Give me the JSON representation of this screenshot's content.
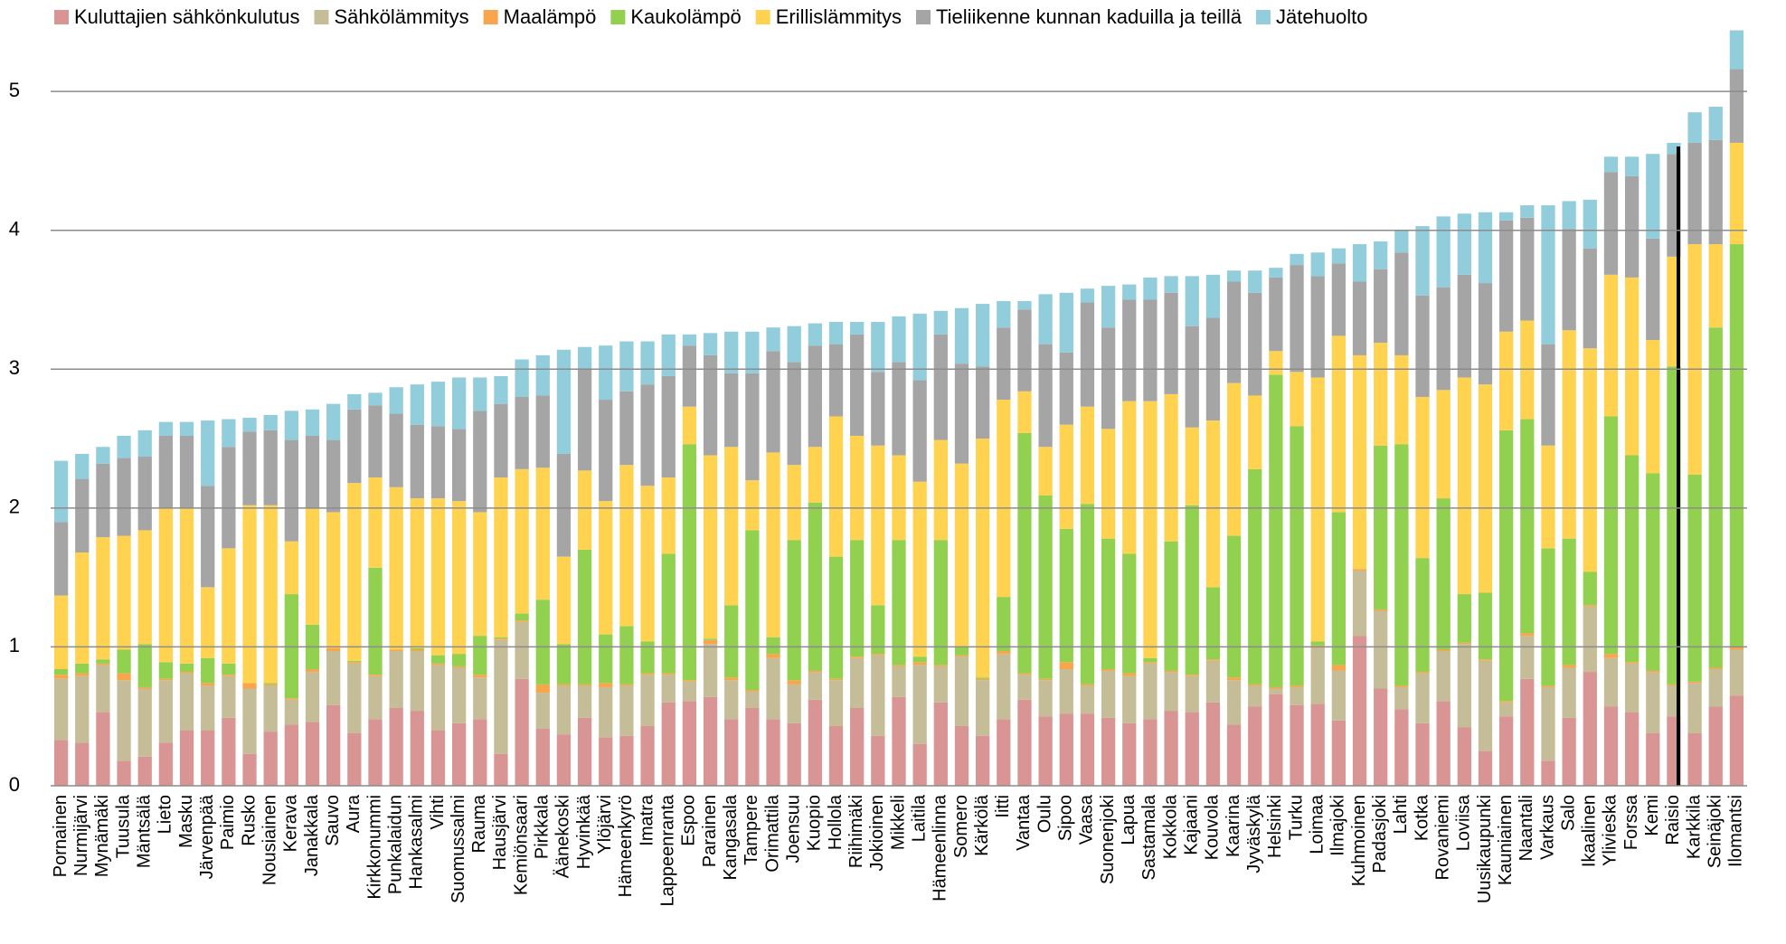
{
  "chart_data": {
    "type": "stacked_bar",
    "categories": [
      "Pornainen",
      "Nurmijärvi",
      "Mynämäki",
      "Tuusula",
      "Mäntsälä",
      "Lieto",
      "Masku",
      "Järvenpää",
      "Paimio",
      "Rusko",
      "Nousiainen",
      "Kerava",
      "Janakkala",
      "Sauvo",
      "Aura",
      "Kirkkonummi",
      "Punkalaidun",
      "Hankasalmi",
      "Vihti",
      "Suomussalmi",
      "Rauma",
      "Hausjärvi",
      "Kemiönsaari",
      "Pirkkala",
      "Äänekoski",
      "Hyvinkää",
      "Ylöjärvi",
      "Hämeenkyrö",
      "Imatra",
      "Lappeenranta",
      "Espoo",
      "Parainen",
      "Kangasala",
      "Tampere",
      "Orimattila",
      "Joensuu",
      "Kuopio",
      "Hollola",
      "Riihimäki",
      "Jokioinen",
      "Mikkeli",
      "Laitila",
      "Hämeenlinna",
      "Somero",
      "Kärkölä",
      "Iitti",
      "Vantaa",
      "Oulu",
      "Sipoo",
      "Vaasa",
      "Suonenjoki",
      "Lapua",
      "Sastamala",
      "Kokkola",
      "Kajaani",
      "Kouvola",
      "Kaarina",
      "Jyväskylä",
      "Helsinki",
      "Turku",
      "Loimaa",
      "Ilmajoki",
      "Kuhmoinen",
      "Padasjoki",
      "Lahti",
      "Kotka",
      "Rovaniemi",
      "Loviisa",
      "Uusikaupunki",
      "Kauniainen",
      "Naantali",
      "Varkaus",
      "Salo",
      "Ikaalinen",
      "Ylivieska",
      "Forssa",
      "Kemi",
      "Raisio",
      "Karkkila",
      "Seinäjoki",
      "Ilomantsi"
    ],
    "series": [
      {
        "name": "Kuluttajien sähkönkulutus",
        "color": "#d99594",
        "values": [
          0.33,
          0.31,
          0.53,
          0.18,
          0.21,
          0.31,
          0.4,
          0.4,
          0.49,
          0.23,
          0.39,
          0.44,
          0.46,
          0.58,
          0.38,
          0.48,
          0.56,
          0.54,
          0.4,
          0.45,
          0.48,
          0.23,
          0.77,
          0.41,
          0.37,
          0.49,
          0.35,
          0.36,
          0.43,
          0.6,
          0.61,
          0.64,
          0.48,
          0.56,
          0.48,
          0.45,
          0.62,
          0.43,
          0.56,
          0.36,
          0.64,
          0.3,
          0.6,
          0.43,
          0.36,
          0.48,
          0.62,
          0.5,
          0.52,
          0.52,
          0.49,
          0.45,
          0.48,
          0.54,
          0.53,
          0.6,
          0.44,
          0.57,
          0.66,
          0.58,
          0.59,
          0.47,
          1.08,
          0.7,
          0.55,
          0.45,
          0.61,
          0.42,
          0.25,
          0.5,
          0.77,
          0.18,
          0.49,
          0.82,
          0.57,
          0.53,
          0.38,
          0.5,
          0.38,
          0.57,
          0.65
        ]
      },
      {
        "name": "Sähkölämmitys",
        "color": "#c4bd97",
        "values": [
          0.44,
          0.48,
          0.34,
          0.58,
          0.49,
          0.45,
          0.41,
          0.32,
          0.3,
          0.47,
          0.33,
          0.18,
          0.36,
          0.39,
          0.5,
          0.31,
          0.41,
          0.43,
          0.47,
          0.4,
          0.3,
          0.82,
          0.41,
          0.26,
          0.35,
          0.23,
          0.36,
          0.36,
          0.37,
          0.2,
          0.14,
          0.38,
          0.28,
          0.12,
          0.44,
          0.28,
          0.2,
          0.33,
          0.36,
          0.58,
          0.22,
          0.57,
          0.26,
          0.5,
          0.4,
          0.47,
          0.18,
          0.26,
          0.32,
          0.2,
          0.34,
          0.34,
          0.4,
          0.28,
          0.26,
          0.3,
          0.32,
          0.15,
          0.04,
          0.13,
          0.41,
          0.36,
          0.47,
          0.56,
          0.16,
          0.36,
          0.36,
          0.6,
          0.65,
          0.1,
          0.31,
          0.53,
          0.36,
          0.47,
          0.35,
          0.35,
          0.44,
          0.22,
          0.36,
          0.27,
          0.33
        ]
      },
      {
        "name": "Maalämpö",
        "color": "#f9a54c",
        "values": [
          0.03,
          0.02,
          0.01,
          0.05,
          0.01,
          0.01,
          0.01,
          0.02,
          0.01,
          0.04,
          0.01,
          0.01,
          0.02,
          0.02,
          0.01,
          0.01,
          0.01,
          0.01,
          0.01,
          0.01,
          0.02,
          0.01,
          0.01,
          0.06,
          0.01,
          0.01,
          0.03,
          0.01,
          0.01,
          0.01,
          0.01,
          0.03,
          0.02,
          0.01,
          0.03,
          0.03,
          0.01,
          0.01,
          0.01,
          0.01,
          0.01,
          0.02,
          0.01,
          0.01,
          0.01,
          0.02,
          0.01,
          0.01,
          0.05,
          0.01,
          0.01,
          0.02,
          0.01,
          0.01,
          0.01,
          0.01,
          0.02,
          0.01,
          0.01,
          0.01,
          0.01,
          0.04,
          0.01,
          0.01,
          0.01,
          0.01,
          0.01,
          0.01,
          0.01,
          0.01,
          0.02,
          0.01,
          0.02,
          0.01,
          0.03,
          0.01,
          0.01,
          0.01,
          0.01,
          0.01,
          0.02
        ]
      },
      {
        "name": "Kaukolämpö",
        "color": "#92d050",
        "values": [
          0.04,
          0.07,
          0.03,
          0.17,
          0.31,
          0.12,
          0.06,
          0.18,
          0.08,
          0,
          0.01,
          0.75,
          0.32,
          0,
          0.01,
          0.77,
          0,
          0.01,
          0.06,
          0.09,
          0.28,
          0.01,
          0.05,
          0.61,
          0.29,
          0.97,
          0.35,
          0.42,
          0.23,
          0.86,
          1.7,
          0.01,
          0.52,
          1.15,
          0.12,
          1.01,
          1.21,
          0.88,
          0.84,
          0.35,
          0.9,
          0.04,
          0.9,
          0.06,
          0.01,
          0.39,
          1.73,
          1.32,
          0.96,
          1.3,
          0.94,
          0.86,
          0.03,
          0.93,
          1.22,
          0.52,
          1.02,
          1.55,
          2.25,
          1.87,
          0.03,
          1.1,
          0,
          1.18,
          1.74,
          0.82,
          1.09,
          0.35,
          0.48,
          1.95,
          1.54,
          0.99,
          0.91,
          0.24,
          1.71,
          1.49,
          1.42,
          2.29,
          1.49,
          2.45,
          2.9
        ]
      },
      {
        "name": "Erillislämmitys",
        "color": "#ffd350",
        "values": [
          0.53,
          0.8,
          0.88,
          0.82,
          0.82,
          1.11,
          1.12,
          0.51,
          0.83,
          1.28,
          1.28,
          0.38,
          0.84,
          0.98,
          1.28,
          0.65,
          1.17,
          1.08,
          1.13,
          1.1,
          0.89,
          1.15,
          1.04,
          0.95,
          0.63,
          0.57,
          0.96,
          1.16,
          1.12,
          0.55,
          0.27,
          1.32,
          1.14,
          0.36,
          1.33,
          0.54,
          0.4,
          1.01,
          0.75,
          1.15,
          0.61,
          1.26,
          0.72,
          1.32,
          1.72,
          1.42,
          0.3,
          0.35,
          0.75,
          0.7,
          0.79,
          1.1,
          1.85,
          1.06,
          0.56,
          1.2,
          1.1,
          0.53,
          0.17,
          0.39,
          1.9,
          1.27,
          1.54,
          0.74,
          0.64,
          1.16,
          0.78,
          1.56,
          1.5,
          0.71,
          0.71,
          0.74,
          1.5,
          1.61,
          1.02,
          1.28,
          0.96,
          0.79,
          1.66,
          0.6,
          0.73
        ]
      },
      {
        "name": "Tieliikenne kunnan kaduilla ja teillä",
        "color": "#a5a5a5",
        "values": [
          0.53,
          0.53,
          0.53,
          0.56,
          0.53,
          0.52,
          0.52,
          0.73,
          0.73,
          0.53,
          0.54,
          0.73,
          0.52,
          0.52,
          0.53,
          0.52,
          0.53,
          0.53,
          0.52,
          0.52,
          0.73,
          0.53,
          0.52,
          0.52,
          0.74,
          0.73,
          0.73,
          0.53,
          0.73,
          0.73,
          0.44,
          0.72,
          0.53,
          0.77,
          0.73,
          0.74,
          0.73,
          0.52,
          0.73,
          0.53,
          0.67,
          0.73,
          0.76,
          0.72,
          0.52,
          0.52,
          0.59,
          0.74,
          0.52,
          0.75,
          0.73,
          0.73,
          0.73,
          0.73,
          0.73,
          0.74,
          0.73,
          0.74,
          0.53,
          0.77,
          0.73,
          0.52,
          0.53,
          0.53,
          0.74,
          0.73,
          0.74,
          0.74,
          0.73,
          0.8,
          0.74,
          0.73,
          0.73,
          0.72,
          0.74,
          0.73,
          0.73,
          0.74,
          0.73,
          0.75,
          0.53
        ]
      },
      {
        "name": "Jätehuolto",
        "color": "#92cddc",
        "values": [
          0.44,
          0.18,
          0.12,
          0.16,
          0.19,
          0.1,
          0.1,
          0.47,
          0.2,
          0.1,
          0.11,
          0.21,
          0.19,
          0.26,
          0.11,
          0.09,
          0.19,
          0.29,
          0.32,
          0.37,
          0.24,
          0.2,
          0.27,
          0.29,
          0.75,
          0.16,
          0.39,
          0.36,
          0.31,
          0.3,
          0.08,
          0.16,
          0.3,
          0.3,
          0.17,
          0.26,
          0.16,
          0.16,
          0.09,
          0.36,
          0.33,
          0.48,
          0.17,
          0.4,
          0.45,
          0.19,
          0.06,
          0.36,
          0.43,
          0.1,
          0.3,
          0.11,
          0.16,
          0.12,
          0.36,
          0.31,
          0.08,
          0.16,
          0.07,
          0.08,
          0.17,
          0.11,
          0.27,
          0.2,
          0.16,
          0.5,
          0.51,
          0.44,
          0.51,
          0.06,
          0.09,
          1.0,
          0.2,
          0.35,
          0.11,
          0.14,
          0.61,
          0.08,
          0.22,
          0.24,
          0.28
        ]
      }
    ],
    "ylim": [
      0,
      5.45
    ],
    "yticks": [
      0,
      1,
      2,
      3,
      4,
      5
    ],
    "grid": true,
    "legend": "top"
  }
}
